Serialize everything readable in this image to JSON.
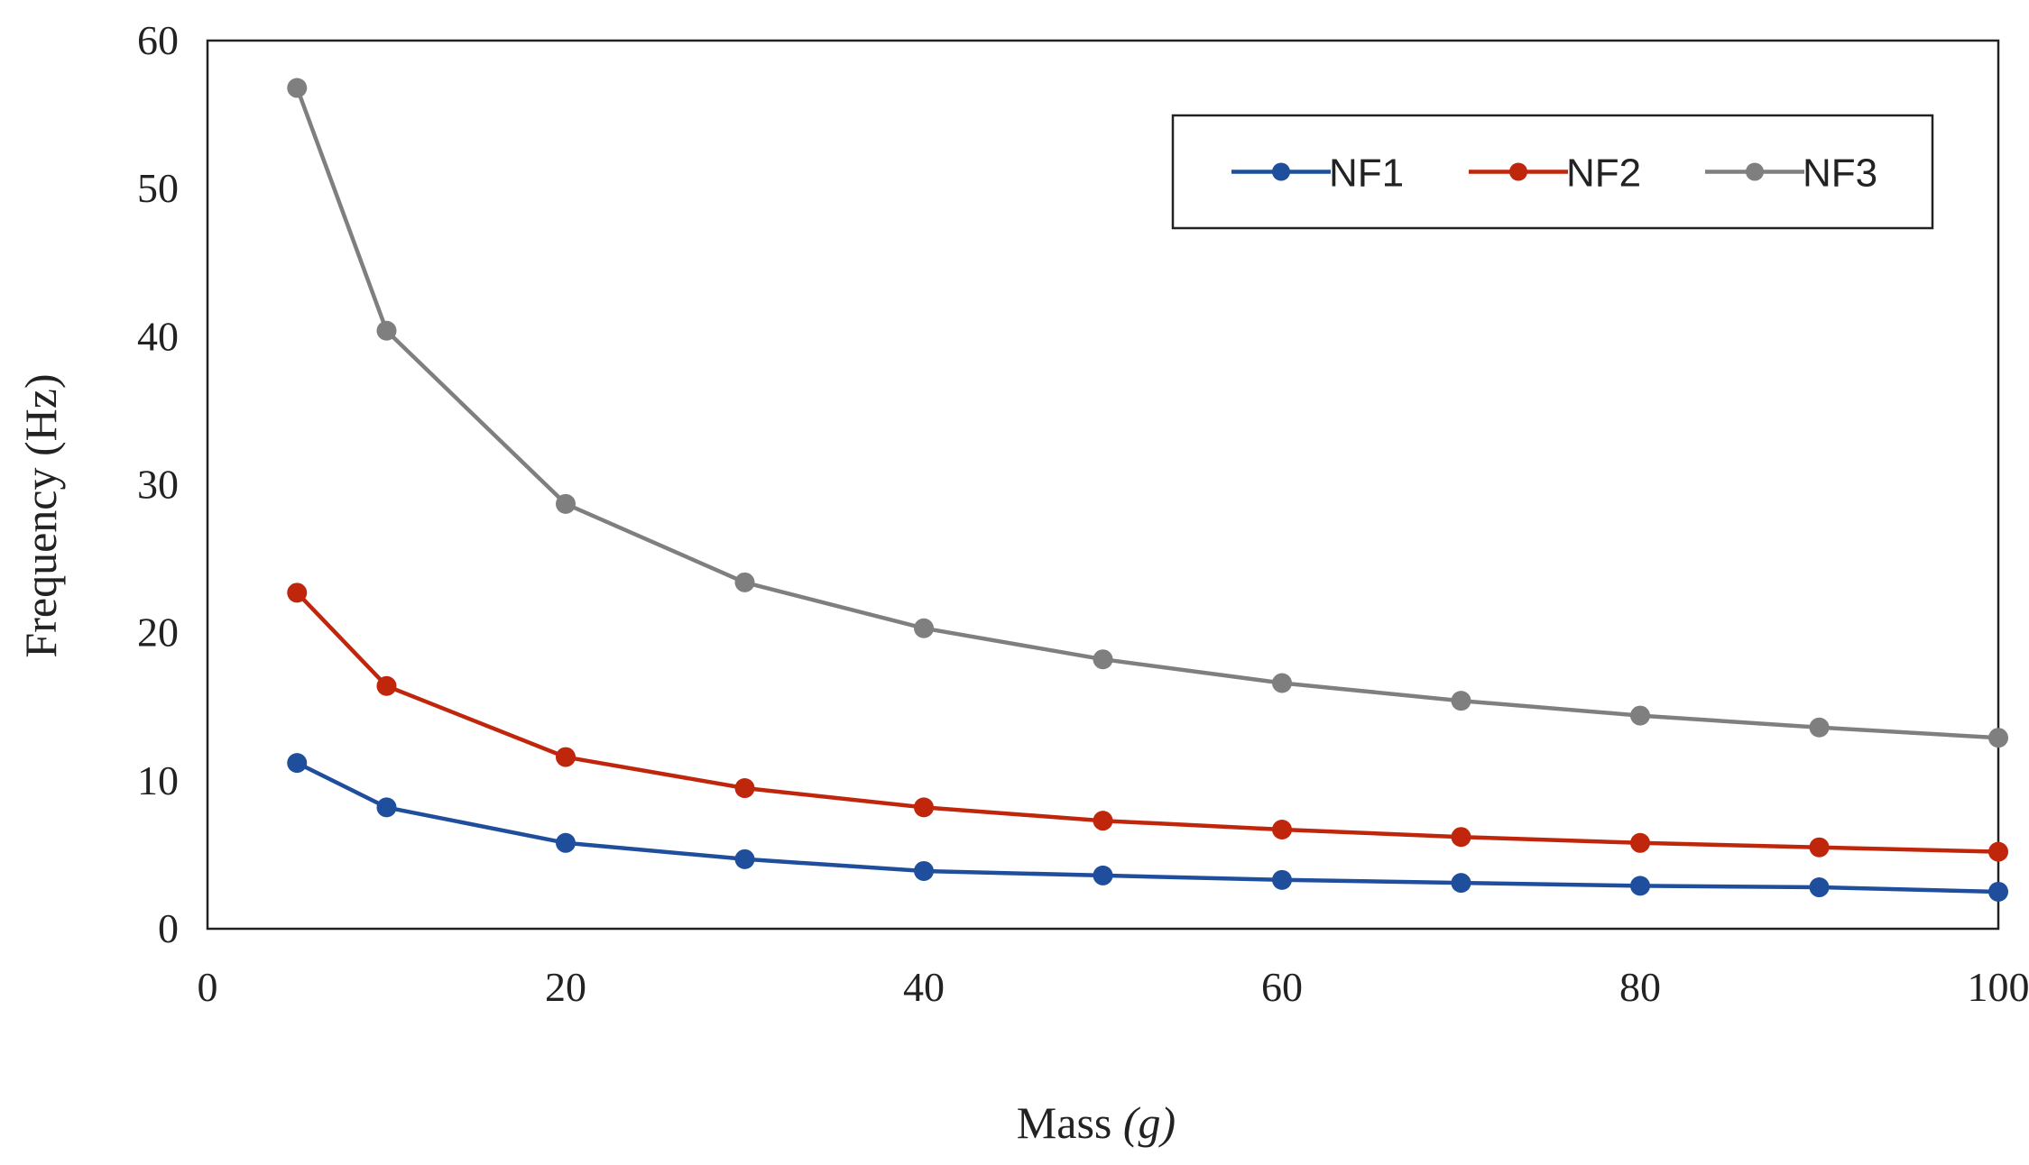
{
  "chart_data": {
    "type": "line",
    "title": "",
    "xlabel": "Mass (g)",
    "xlabel_main": "Mass ",
    "xlabel_unit": "(g)",
    "ylabel": "Frequency  (Hz)",
    "xlim": [
      0,
      100
    ],
    "ylim": [
      0,
      60
    ],
    "xticks": [
      0,
      20,
      40,
      60,
      80,
      100
    ],
    "yticks": [
      0,
      10,
      20,
      30,
      40,
      50,
      60
    ],
    "grid": false,
    "legend_position": "top-right",
    "x": [
      5,
      10,
      20,
      30,
      40,
      50,
      60,
      70,
      80,
      90,
      100
    ],
    "series": [
      {
        "name": "NF1",
        "color": "#1f4e9c",
        "values": [
          11.2,
          8.2,
          5.8,
          4.7,
          3.9,
          3.6,
          3.3,
          3.1,
          2.9,
          2.8,
          2.5
        ]
      },
      {
        "name": "NF2",
        "color": "#c0260b",
        "values": [
          22.7,
          16.4,
          11.6,
          9.5,
          8.2,
          7.3,
          6.7,
          6.2,
          5.8,
          5.5,
          5.2
        ]
      },
      {
        "name": "NF3",
        "color": "#7f7f7f",
        "values": [
          56.8,
          40.4,
          28.7,
          23.4,
          20.3,
          18.2,
          16.6,
          15.4,
          14.4,
          13.6,
          12.9
        ]
      }
    ]
  }
}
